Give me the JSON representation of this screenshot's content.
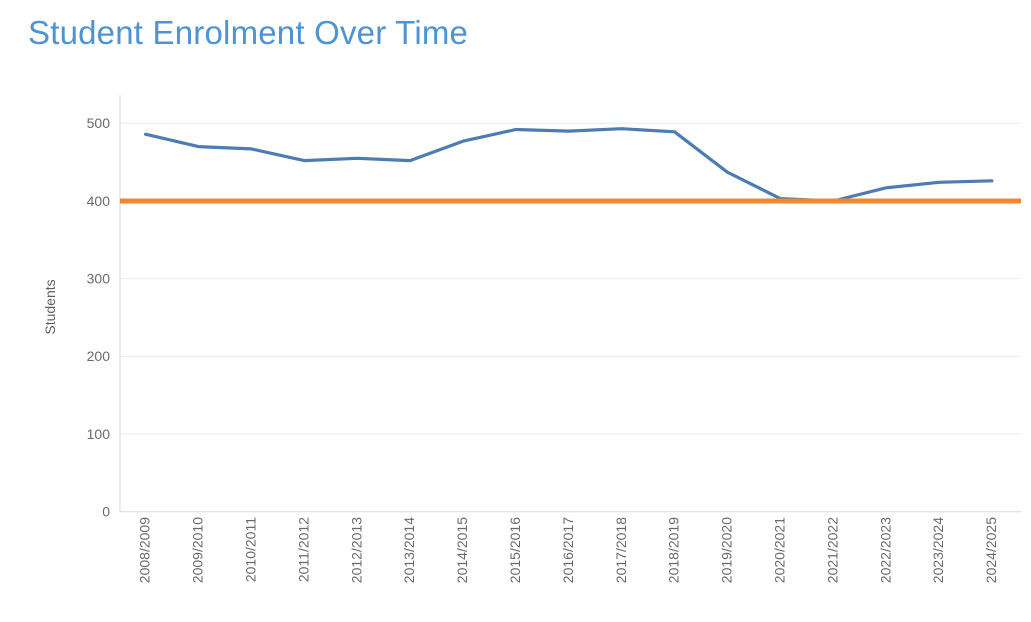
{
  "title": "Student Enrolment Over Time",
  "colors": {
    "title": "#4e93d2",
    "series_line": "#4e7cb2",
    "threshold_line": "#f5862c",
    "grid": "#ececec",
    "axis": "#d9d9d9",
    "tick_text": "#6a6a6a",
    "axis_title_text": "#5f5f5f",
    "background": "#ffffff"
  },
  "chart_data": {
    "type": "line",
    "title": "Student Enrolment Over Time",
    "categories": [
      "2008/2009",
      "2009/2010",
      "2010/2011",
      "2011/2012",
      "2012/2013",
      "2013/2014",
      "2014/2015",
      "2015/2016",
      "2016/2017",
      "2017/2018",
      "2018/2019",
      "2019/2020",
      "2020/2021",
      "2021/2022",
      "2022/2023",
      "2023/2024",
      "2024/2025"
    ],
    "series": [
      {
        "name": "Students",
        "color": "#4e7cb2",
        "values": [
          486,
          470,
          467,
          452,
          455,
          452,
          477,
          492,
          490,
          493,
          489,
          437,
          403,
          400,
          417,
          424,
          426
        ]
      }
    ],
    "annotations": [
      {
        "type": "horizontal-line",
        "name": "threshold-400",
        "value": 400,
        "color": "#f5862c"
      }
    ],
    "xlabel": "",
    "ylabel": "Students",
    "ylim": [
      0,
      500
    ],
    "yticks": [
      0,
      100,
      200,
      300,
      400,
      500
    ],
    "x_tick_rotation": -90,
    "grid": true,
    "legend": false
  }
}
